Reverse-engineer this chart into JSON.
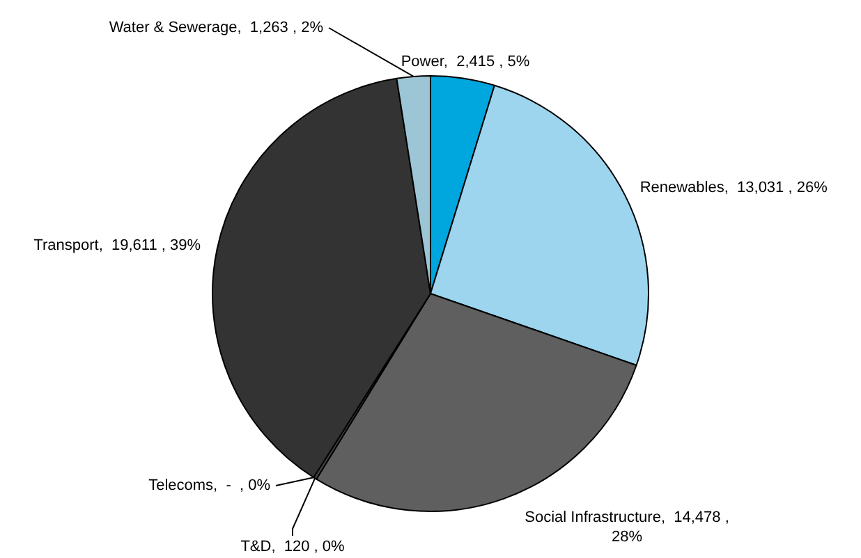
{
  "chart_data": {
    "type": "pie",
    "categories": [
      "Power",
      "Renewables",
      "Social Infrastructure",
      "T&D",
      "Telecoms",
      "Transport",
      "Water & Sewerage"
    ],
    "values": [
      2415,
      13031,
      14478,
      120,
      0,
      19611,
      1263
    ],
    "value_labels": [
      "2,415 , 5%",
      "13,031 , 26%",
      "14,478 , 28%",
      "120 , 0%",
      "-  , 0%",
      "19,611 , 39%",
      "1,263 , 2%"
    ],
    "colors": [
      "#00a6de",
      "#9dd5ee",
      "#5f5f5f",
      "#444444",
      "#505050",
      "#333333",
      "#9cc5d5"
    ]
  }
}
